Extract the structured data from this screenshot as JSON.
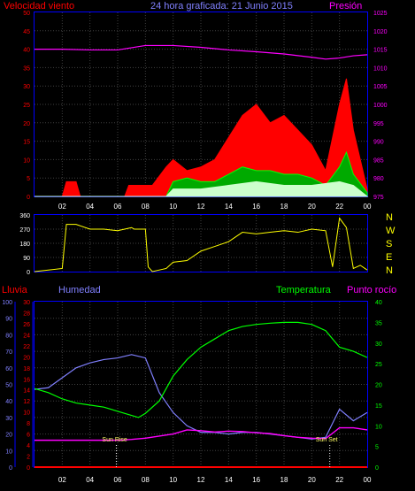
{
  "title": "24 hora graficada:  21 Junio 2015",
  "colors": {
    "wind": "#ff0000",
    "gust": "#ff2020",
    "dir": "#ffff00",
    "pressure": "#ff00ff",
    "humidity": "#8080ff",
    "temperature": "#00ff00",
    "dewpoint": "#ff00ff",
    "rain": "#ff0000",
    "axis": "#0000ff",
    "grid": "#404040",
    "white": "#ffffff"
  },
  "chart_data": [
    {
      "type": "line",
      "panel": "wind",
      "left_label": "Velocidad viento",
      "right_label": "Presión",
      "y_left": {
        "ticks": [
          "0",
          "5",
          "10",
          "15",
          "20",
          "25",
          "30",
          "35",
          "40",
          "45",
          "50"
        ],
        "range": [
          0,
          50
        ]
      },
      "y_right": {
        "ticks": [
          "975",
          "980",
          "985",
          "990",
          "995",
          "1000",
          "1005",
          "1010",
          "1015",
          "1020",
          "1025"
        ],
        "range": [
          975,
          1025
        ]
      },
      "x_ticks": [
        "02",
        "04",
        "06",
        "08",
        "10",
        "12",
        "14",
        "16",
        "18",
        "20",
        "22",
        "00"
      ],
      "x_range_hours": [
        0,
        24
      ],
      "grid": true,
      "series": [
        {
          "role": "pressure",
          "x": [
            0,
            2,
            4,
            6,
            8,
            10,
            12,
            14,
            16,
            18,
            20,
            21,
            22,
            23,
            24
          ],
          "values": [
            1015,
            1015,
            1014.8,
            1014.8,
            1016,
            1016,
            1015.5,
            1014.8,
            1014.3,
            1013.7,
            1012.8,
            1012.3,
            1012.6,
            1013.2,
            1013.5
          ]
        },
        {
          "role": "wind-max",
          "x": [
            0,
            2,
            2.3,
            3,
            3.3,
            6.5,
            6.8,
            8.5,
            9.5,
            10,
            11,
            12,
            13,
            14,
            15,
            16,
            17,
            18,
            19,
            20,
            21,
            22,
            22.5,
            23,
            24
          ],
          "values": [
            0,
            0,
            4,
            4,
            0,
            0,
            3,
            3,
            8,
            10,
            7,
            8,
            10,
            16,
            22,
            25,
            20,
            22,
            18,
            14,
            7,
            25,
            32,
            18,
            2
          ]
        },
        {
          "role": "wind-avg",
          "x": [
            0,
            9.5,
            10,
            11,
            12,
            13,
            14,
            15,
            16,
            17,
            18,
            19,
            20,
            21,
            22,
            22.5,
            23,
            24
          ],
          "values": [
            0,
            0,
            4,
            5,
            4,
            4,
            6,
            8,
            7,
            7,
            6,
            6,
            5,
            3,
            8,
            12,
            6,
            1
          ]
        },
        {
          "role": "wind-min",
          "x": [
            0,
            9.5,
            10,
            12,
            14,
            16,
            18,
            20,
            22,
            23,
            24
          ],
          "values": [
            0,
            0,
            2,
            2,
            3,
            4,
            3,
            3,
            4,
            3,
            0
          ]
        }
      ]
    },
    {
      "type": "scatter",
      "panel": "direction",
      "y_ticks": [
        "0",
        "90",
        "180",
        "270",
        "360"
      ],
      "y_range": [
        0,
        360
      ],
      "right_labels": [
        "N",
        "W",
        "S",
        "E",
        "N"
      ],
      "x_range_hours": [
        0,
        24
      ],
      "grid": true,
      "series": [
        {
          "role": "direction",
          "x": [
            0,
            1,
            2,
            2.3,
            3,
            4,
            5,
            6,
            6.5,
            7,
            7.2,
            8,
            8.2,
            8.5,
            9.5,
            10,
            11,
            12,
            13,
            14,
            15,
            16,
            17,
            18,
            19,
            20,
            21,
            21.5,
            22,
            22.5,
            23,
            23.5,
            24
          ],
          "values": [
            0,
            10,
            20,
            300,
            300,
            270,
            270,
            260,
            270,
            280,
            270,
            270,
            30,
            0,
            20,
            60,
            70,
            130,
            160,
            190,
            250,
            240,
            250,
            260,
            250,
            270,
            260,
            30,
            340,
            280,
            20,
            40,
            10
          ]
        }
      ]
    },
    {
      "type": "line",
      "panel": "humidity-temperature",
      "labels": {
        "rain": "Lluvia",
        "humidity": "Humedad",
        "temperature": "Temperatura",
        "dewpoint": "Punto rocío"
      },
      "y_humidity": {
        "ticks": [
          "0",
          "10",
          "20",
          "30",
          "40",
          "50",
          "60",
          "70",
          "80",
          "90",
          "100"
        ],
        "range": [
          0,
          100
        ]
      },
      "y_rain": {
        "ticks": [
          "0",
          "2",
          "4",
          "6",
          "8",
          "10",
          "12",
          "14",
          "16",
          "18",
          "20",
          "22",
          "24",
          "26",
          "28",
          "30"
        ],
        "range": [
          0,
          30
        ]
      },
      "y_temperature": {
        "ticks": [
          "0",
          "5",
          "10",
          "15",
          "20",
          "25",
          "30",
          "35",
          "40"
        ],
        "range": [
          0,
          40
        ]
      },
      "x_ticks": [
        "02",
        "04",
        "06",
        "08",
        "10",
        "12",
        "14",
        "16",
        "18",
        "20",
        "22",
        "00"
      ],
      "x_range_hours": [
        0,
        24
      ],
      "grid": true,
      "annotations": [
        {
          "text": "Sun Rise",
          "x": 5.9
        },
        {
          "text": "Sun Set",
          "x": 21.3
        }
      ],
      "series": [
        {
          "role": "humidity",
          "x": [
            0,
            1,
            2,
            3,
            4,
            5,
            6,
            7,
            8,
            9,
            10,
            11,
            12,
            13,
            14,
            15,
            16,
            17,
            18,
            19,
            20,
            21,
            22,
            23,
            24
          ],
          "values": [
            47,
            48,
            54,
            60,
            63,
            65,
            66,
            68,
            66,
            45,
            33,
            25,
            21,
            21,
            20,
            21,
            21,
            20,
            19,
            18,
            17,
            18,
            35,
            28,
            33
          ]
        },
        {
          "role": "temperature",
          "x": [
            0,
            1,
            2,
            3,
            4,
            5,
            6,
            7,
            7.5,
            8,
            9,
            10,
            11,
            12,
            13,
            14,
            15,
            16,
            17,
            18,
            19,
            20,
            21,
            22,
            23,
            24
          ],
          "values": [
            19,
            18,
            16.5,
            15.5,
            15,
            14.5,
            13.5,
            12.5,
            12,
            13,
            16,
            22,
            26,
            29,
            31,
            33,
            34,
            34.5,
            34.8,
            35,
            35,
            34.5,
            33,
            29,
            28,
            26.5
          ]
        },
        {
          "role": "dewpoint",
          "x": [
            0,
            2,
            4,
            6,
            7,
            8,
            9,
            10,
            11,
            12,
            13,
            14,
            15,
            16,
            17,
            18,
            19,
            20,
            21,
            22,
            23,
            24
          ],
          "values": [
            6.5,
            6.5,
            6.5,
            6.5,
            6.7,
            7,
            7.5,
            8,
            9,
            8.8,
            8.5,
            8.7,
            8.6,
            8.3,
            8.1,
            7.6,
            7.2,
            7,
            6.9,
            9.5,
            9.5,
            9
          ]
        },
        {
          "role": "rain",
          "x": [
            0,
            24
          ],
          "values": [
            0,
            0
          ]
        }
      ]
    }
  ]
}
